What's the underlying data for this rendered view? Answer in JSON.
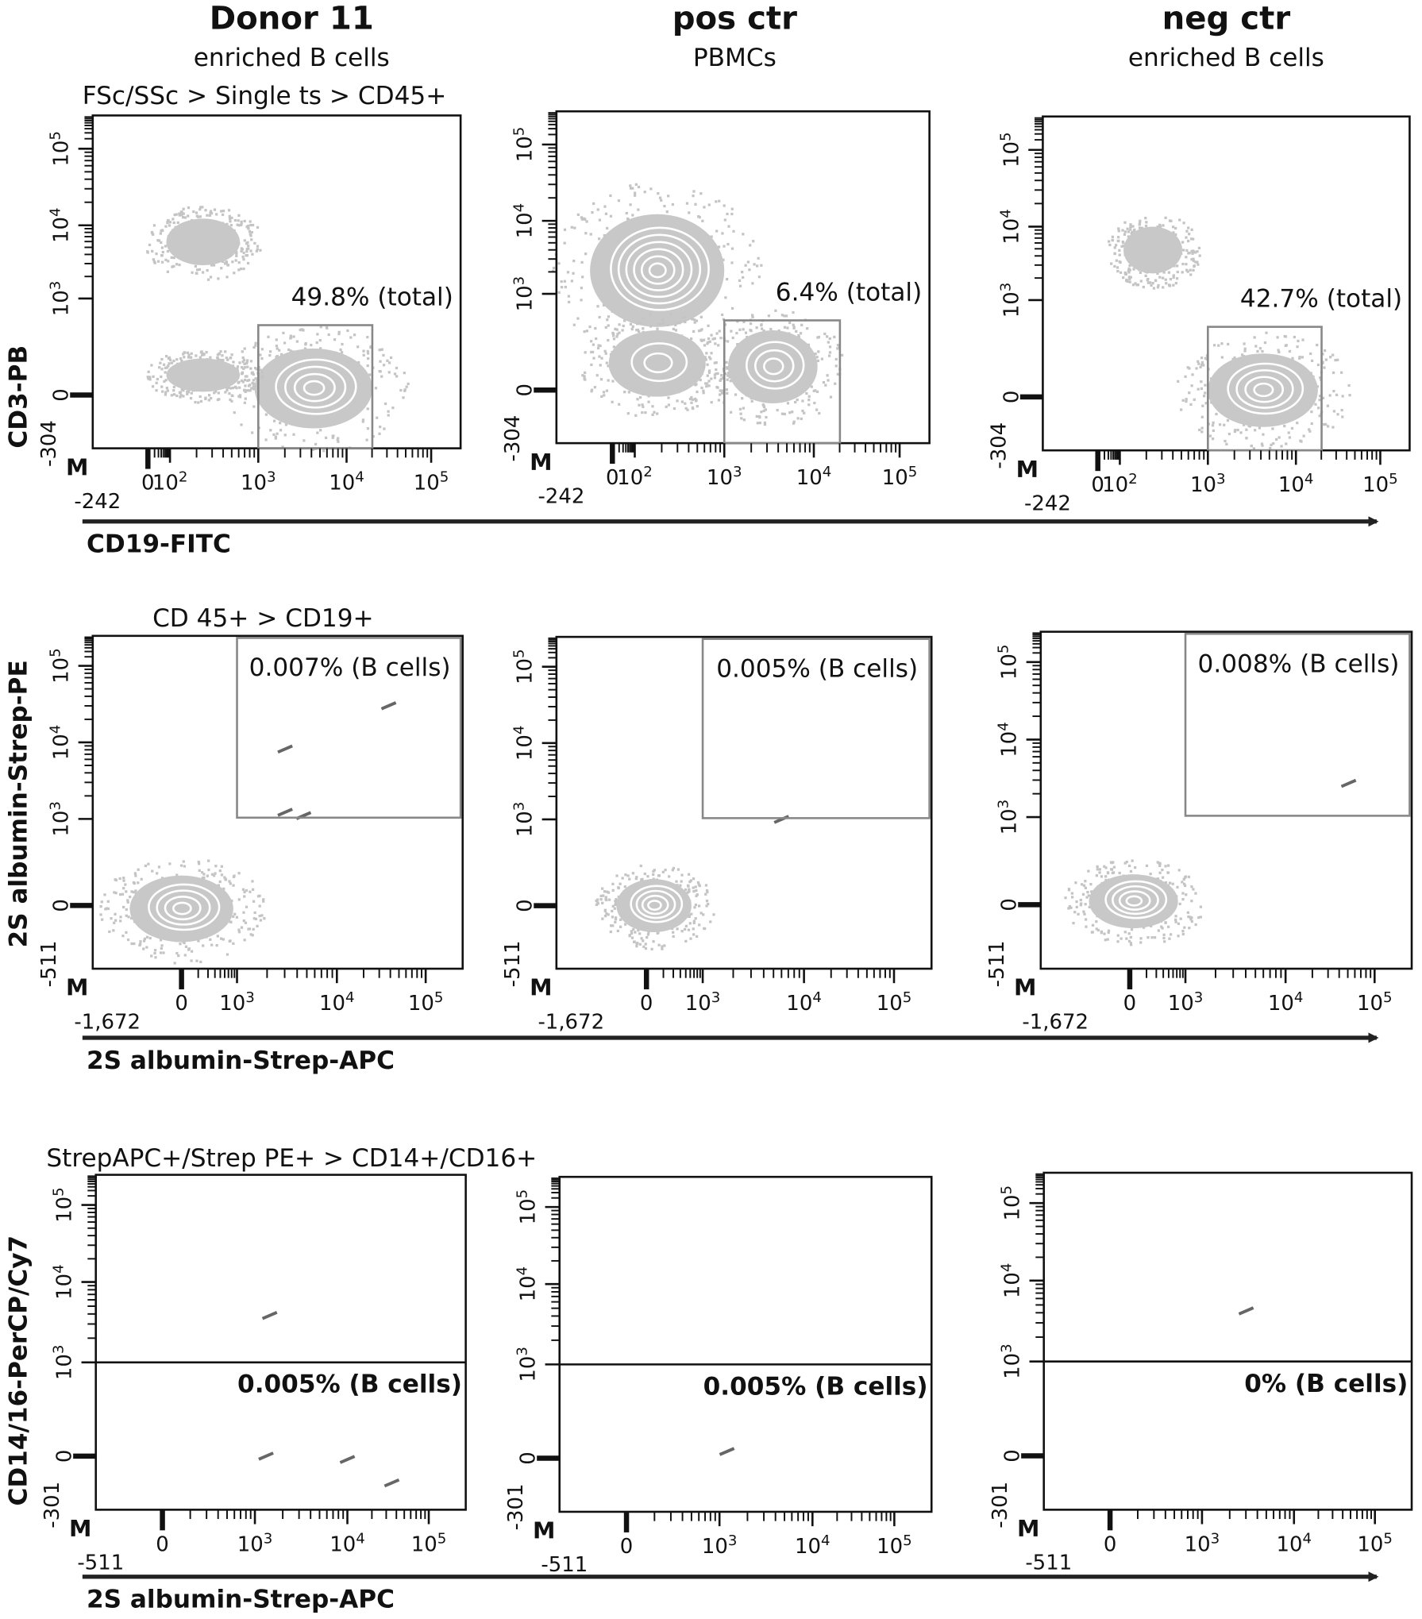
{
  "corner_mark": "M",
  "columns": [
    {
      "title": "Donor 11",
      "subtitle": "enriched B cells"
    },
    {
      "title": "pos ctr",
      "subtitle": "PBMCs"
    },
    {
      "title": "neg ctr",
      "subtitle": "enriched B cells"
    }
  ],
  "rows": [
    {
      "gate": "FSc/SSc > Single ts > CD45+",
      "y_label": "CD3-PB",
      "x_label": "CD19-FITC",
      "y_min": "-304",
      "x_min": "-242",
      "y_ticks": [
        {
          "text": "0"
        },
        {
          "text": "10",
          "sup": "3"
        },
        {
          "text": "10",
          "sup": "4"
        },
        {
          "text": "10",
          "sup": "5"
        }
      ],
      "x_ticks": [
        {
          "text": "0"
        },
        {
          "text": "10",
          "sup": "2"
        },
        {
          "text": "10",
          "sup": "3"
        },
        {
          "text": "10",
          "sup": "4"
        },
        {
          "text": "10",
          "sup": "5"
        }
      ],
      "stats": [
        "49.8% (total)",
        "6.4% (total)",
        "42.7% (total)"
      ]
    },
    {
      "gate": "CD 45+ > CD19+",
      "y_label": "2S albumin-Strep-PE",
      "x_label": "2S albumin-Strep-APC",
      "y_min": "-511",
      "x_min": "-1,672",
      "y_ticks": [
        {
          "text": "0"
        },
        {
          "text": "10",
          "sup": "3"
        },
        {
          "text": "10",
          "sup": "4"
        },
        {
          "text": "10",
          "sup": "5"
        }
      ],
      "x_ticks": [
        {
          "text": "0"
        },
        {
          "text": "10",
          "sup": "3"
        },
        {
          "text": "10",
          "sup": "4"
        },
        {
          "text": "10",
          "sup": "5"
        }
      ],
      "stats": [
        "0.007% (B cells)",
        "0.005% (B cells)",
        "0.008% (B cells)"
      ]
    },
    {
      "gate": "StrepAPC+/Strep PE+ > CD14+/CD16+",
      "y_label": "CD14/16-PerCP/Cy7",
      "x_label": "2S albumin-Strep-APC",
      "y_min": "-301",
      "x_min": "-511",
      "y_ticks": [
        {
          "text": "0"
        },
        {
          "text": "10",
          "sup": "3"
        },
        {
          "text": "10",
          "sup": "4"
        },
        {
          "text": "10",
          "sup": "5"
        }
      ],
      "x_ticks": [
        {
          "text": "0"
        },
        {
          "text": "10",
          "sup": "3"
        },
        {
          "text": "10",
          "sup": "4"
        },
        {
          "text": "10",
          "sup": "5"
        }
      ],
      "stats": [
        "0.005% (B cells)",
        "0.005% (B cells)",
        "0% (B cells)"
      ]
    }
  ]
}
